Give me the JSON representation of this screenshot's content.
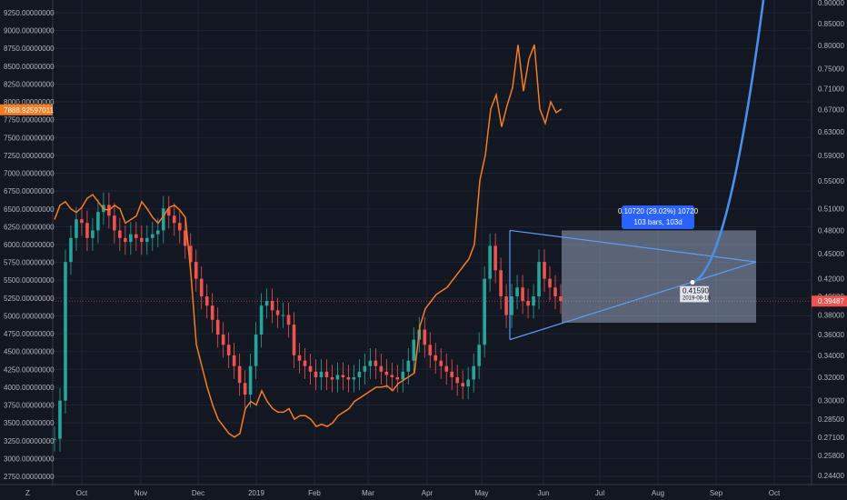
{
  "chart_data": {
    "type": "line",
    "left_axis": {
      "ticks": [
        "9250.00000000",
        "9000.00000000",
        "8750.00000000",
        "8500.00000000",
        "8250.00000000",
        "8000.00000000",
        "7750.00000000",
        "7500.00000000",
        "7250.00000000",
        "7000.00000000",
        "6750.00000000",
        "6500.00000000",
        "6250.00000000",
        "6000.00000000",
        "5750.00000000",
        "5500.00000000",
        "5250.00000000",
        "5000.00000000",
        "4750.00000000",
        "4500.00000000",
        "4250.00000000",
        "4000.00000000",
        "3750.00000000",
        "3500.00000000",
        "3250.00000000",
        "3000.00000000",
        "2750.00000000"
      ],
      "tick_values": [
        9250,
        9000,
        8750,
        8500,
        8250,
        8000,
        7750,
        7500,
        7250,
        7000,
        6750,
        6500,
        6250,
        6000,
        5750,
        5500,
        5250,
        5000,
        4750,
        4500,
        4250,
        4000,
        3750,
        3500,
        3250,
        3000,
        2750
      ],
      "current_price_label": "7888.92597011",
      "current_price": 7888.93
    },
    "right_axis": {
      "ticks": [
        "0.90000",
        "0.85000",
        "0.80000",
        "0.75000",
        "0.71000",
        "0.67000",
        "0.63000",
        "0.59000",
        "0.55000",
        "0.51000",
        "0.48000",
        "0.45000",
        "0.42000",
        "0.40000",
        "0.38000",
        "0.36000",
        "0.34000",
        "0.32000",
        "0.30000",
        "0.28500",
        "0.27100",
        "0.25800",
        "0.24400"
      ],
      "tick_values": [
        0.9,
        0.85,
        0.8,
        0.75,
        0.71,
        0.67,
        0.63,
        0.59,
        0.55,
        0.51,
        0.48,
        0.45,
        0.42,
        0.4,
        0.38,
        0.36,
        0.34,
        0.32,
        0.3,
        0.285,
        0.271,
        0.258,
        0.244
      ],
      "scale": "log",
      "current_price_label": "0.39487",
      "current_price": 0.39487
    },
    "x_axis": {
      "ticks": [
        "Oct",
        "Nov",
        "Dec",
        "2019",
        "Feb",
        "Mar",
        "Apr",
        "May",
        "Jun",
        "Jul",
        "Aug",
        "Sep",
        "Oct"
      ]
    },
    "series": [
      {
        "name": "",
        "style": "candles",
        "axis": "right",
        "values": [
          0.27,
          0.3,
          0.44,
          0.47,
          0.495,
          0.49,
          0.47,
          0.48,
          0.505,
          0.515,
          0.5,
          0.48,
          0.47,
          0.465,
          0.475,
          0.47,
          0.465,
          0.47,
          0.475,
          0.48,
          0.51,
          0.5,
          0.49,
          0.48,
          0.46,
          0.44,
          0.42,
          0.4,
          0.39,
          0.375,
          0.36,
          0.35,
          0.34,
          0.33,
          0.315,
          0.305,
          0.33,
          0.36,
          0.39,
          0.395,
          0.385,
          0.38,
          0.38,
          0.37,
          0.34,
          0.335,
          0.33,
          0.325,
          0.32,
          0.325,
          0.32,
          0.318,
          0.322,
          0.32,
          0.318,
          0.32,
          0.325,
          0.33,
          0.335,
          0.33,
          0.325,
          0.322,
          0.32,
          0.318,
          0.325,
          0.335,
          0.355,
          0.365,
          0.35,
          0.34,
          0.335,
          0.33,
          0.325,
          0.32,
          0.315,
          0.312,
          0.318,
          0.33,
          0.35,
          0.42,
          0.46,
          0.43,
          0.4,
          0.38,
          0.4,
          0.41,
          0.395,
          0.39,
          0.4,
          0.44,
          0.42,
          0.41,
          0.4,
          0.395
        ]
      },
      {
        "name": "",
        "style": "line",
        "axis": "left",
        "color": "#f57c20",
        "values": [
          6350,
          6550,
          6600,
          6500,
          6450,
          6520,
          6650,
          6700,
          6600,
          6500,
          6480,
          6550,
          6500,
          6300,
          6350,
          6400,
          6600,
          6500,
          6380,
          6300,
          6400,
          6520,
          6550,
          6480,
          6380,
          5600,
          4600,
          4300,
          4000,
          3750,
          3550,
          3450,
          3350,
          3300,
          3350,
          3700,
          3800,
          3750,
          3950,
          3800,
          3700,
          3650,
          3650,
          3700,
          3550,
          3600,
          3600,
          3550,
          3450,
          3480,
          3450,
          3500,
          3600,
          3650,
          3700,
          3800,
          3850,
          3900,
          3950,
          4000,
          4000,
          4020,
          3950,
          4050,
          4100,
          4150,
          4200,
          4850,
          5100,
          5200,
          5300,
          5350,
          5400,
          5500,
          5600,
          5700,
          5800,
          6000,
          6900,
          7250,
          7900,
          8100,
          7650,
          7950,
          8200,
          8800,
          8150,
          8600,
          8800,
          7900,
          7700,
          8000,
          7850,
          7900
        ]
      }
    ],
    "annotations": {
      "measure_box_label_line1": "0.10720 (29.02%) 10720",
      "measure_box_label_line2": "103 bars, 103d",
      "point_label_value": "0.41590",
      "point_label_date": "2019-08-18",
      "triangle": {
        "apex_top": [
          0.48,
          0.478
        ],
        "apex_bottom": [
          0.355,
          0.372
        ],
        "apex_right_value": 0.44
      }
    },
    "grid": true,
    "legend": "none"
  },
  "footer": {
    "z_label": "Z"
  }
}
